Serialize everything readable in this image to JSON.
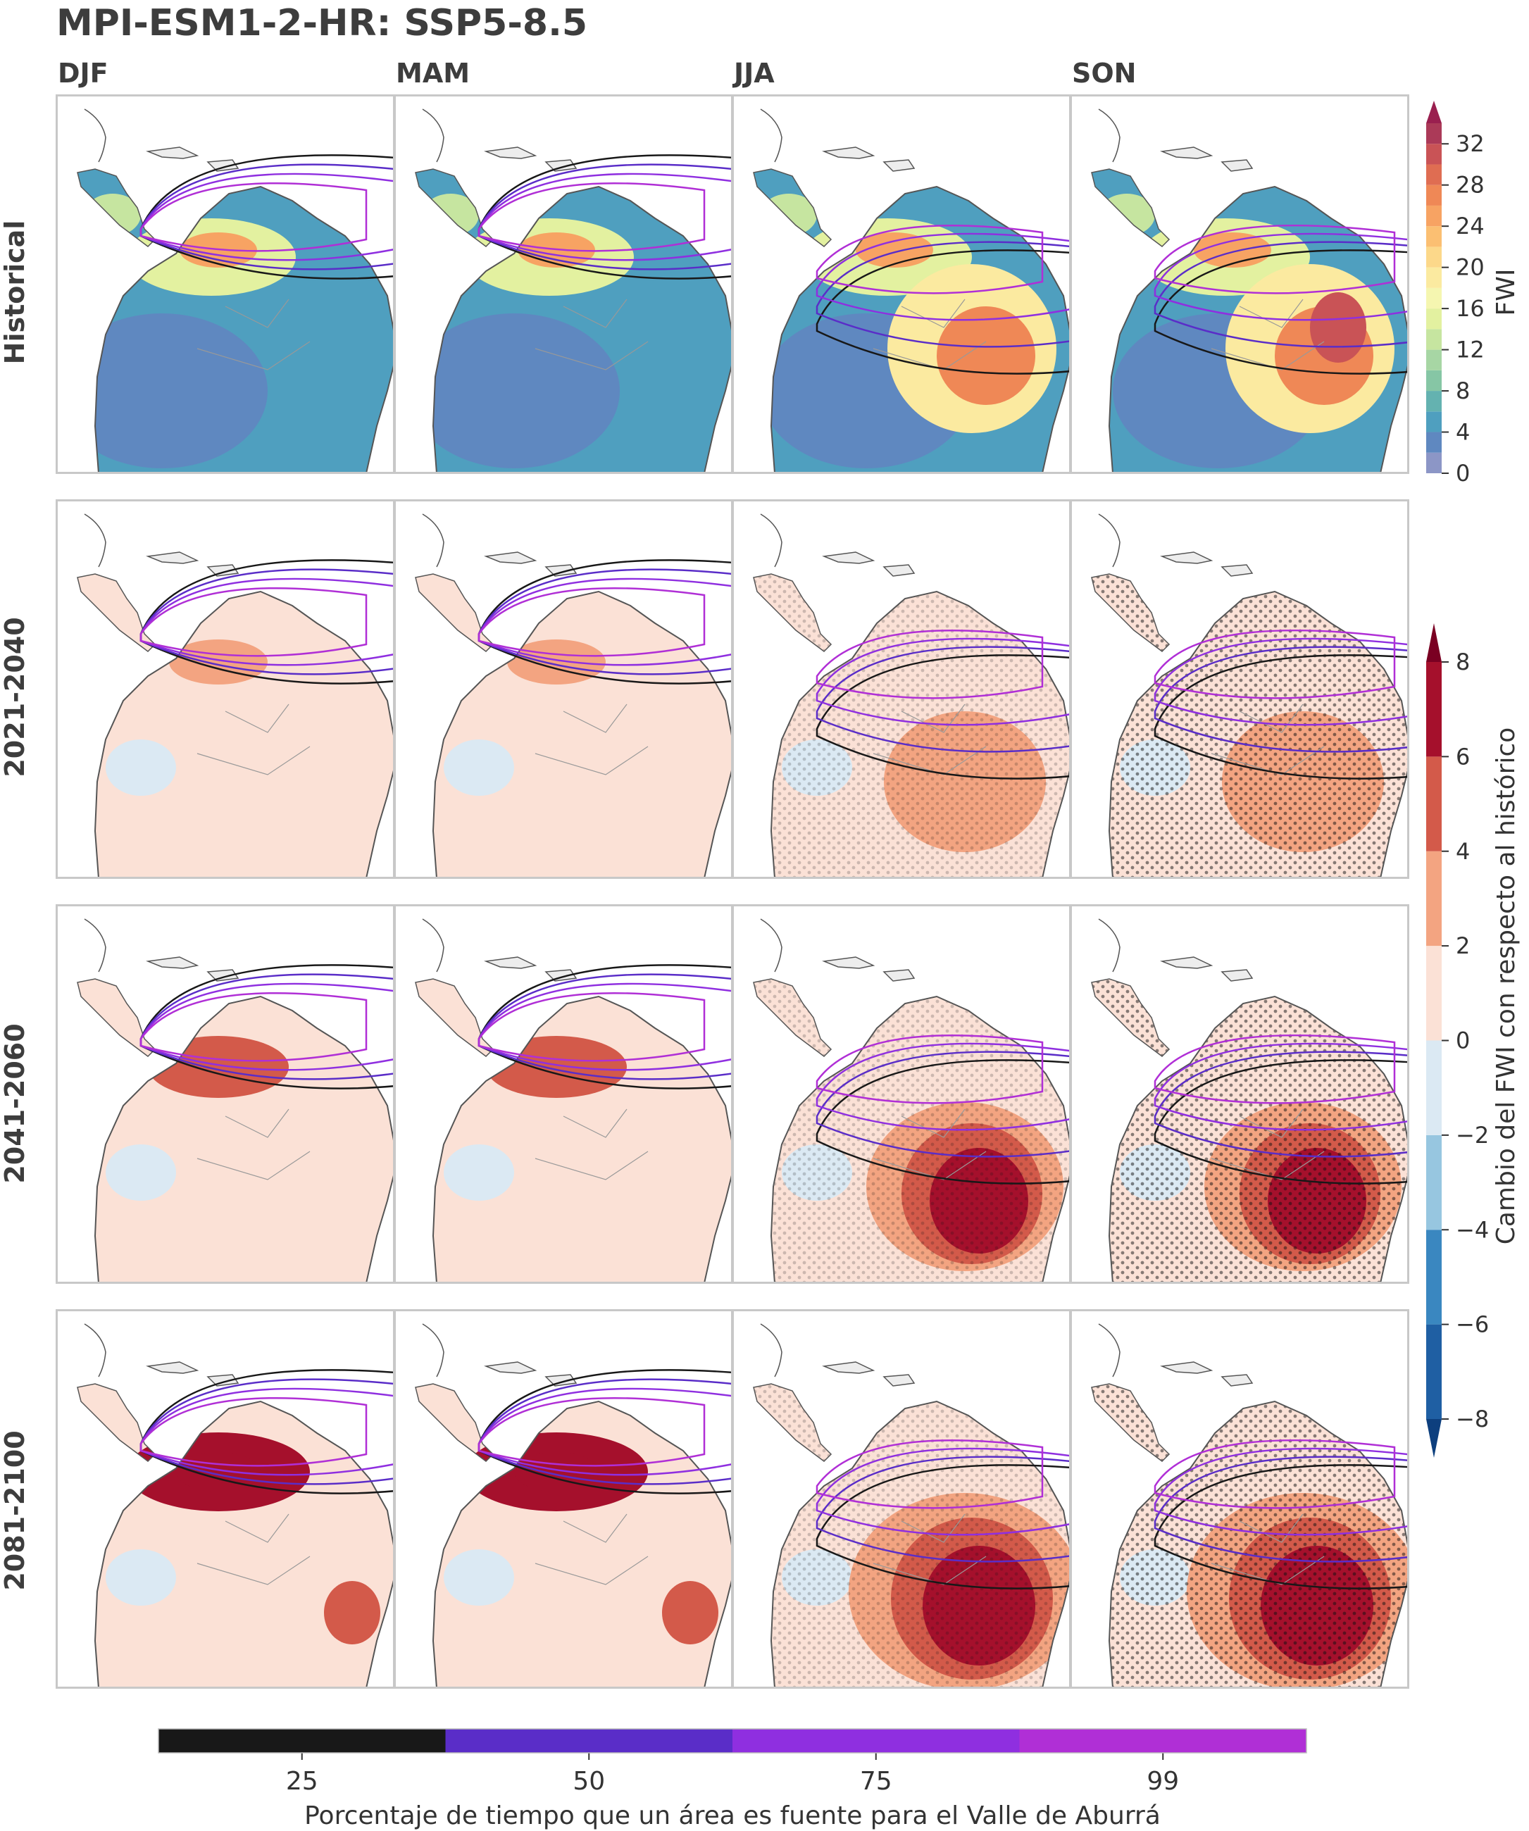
{
  "title": "MPI-ESM1-2-HR: SSP5-8.5",
  "columns": [
    "DJF",
    "MAM",
    "JJA",
    "SON"
  ],
  "rows": [
    "Historical",
    "2021-2040",
    "2041-2060",
    "2081-2100"
  ],
  "colors": {
    "panel_border": "#c8c8c8",
    "land_base": "#ededed",
    "coast": "#555555",
    "source_contour_25": "#181818",
    "source_contour_50": "#5a2dc8",
    "source_contour_75": "#8f2fe0",
    "source_contour_99": "#b02fd6"
  },
  "chart_data": [
    {
      "type": "heatmap",
      "name": "fwi_colorbar",
      "label": "FWI",
      "ticks": [
        0,
        4,
        8,
        12,
        16,
        20,
        24,
        28,
        32
      ],
      "range": [
        0,
        34
      ],
      "extend": "max",
      "levels": [
        {
          "from": 0,
          "to": 2,
          "color": "#8c96c6"
        },
        {
          "from": 2,
          "to": 4,
          "color": "#5f88c0"
        },
        {
          "from": 4,
          "to": 6,
          "color": "#4f9fbf"
        },
        {
          "from": 6,
          "to": 8,
          "color": "#64b2b0"
        },
        {
          "from": 8,
          "to": 10,
          "color": "#86c6a5"
        },
        {
          "from": 10,
          "to": 12,
          "color": "#a7d6a4"
        },
        {
          "from": 12,
          "to": 14,
          "color": "#c6e5a0"
        },
        {
          "from": 14,
          "to": 16,
          "color": "#e3f1a0"
        },
        {
          "from": 16,
          "to": 18,
          "color": "#f5f6b0"
        },
        {
          "from": 18,
          "to": 20,
          "color": "#fbeaa0"
        },
        {
          "from": 20,
          "to": 22,
          "color": "#fcd88a"
        },
        {
          "from": 22,
          "to": 24,
          "color": "#fbbf72"
        },
        {
          "from": 24,
          "to": 26,
          "color": "#f7a363"
        },
        {
          "from": 26,
          "to": 28,
          "color": "#ef8856"
        },
        {
          "from": 28,
          "to": 30,
          "color": "#df6d52"
        },
        {
          "from": 30,
          "to": 32,
          "color": "#c95356"
        },
        {
          "from": 32,
          "to": 34,
          "color": "#ab3a58"
        }
      ],
      "extend_color": "#9a1f4f"
    },
    {
      "type": "heatmap",
      "name": "change_colorbar",
      "label": "Cambio del FWI con respecto al histórico",
      "ticks": [
        -8,
        -6,
        -4,
        -2,
        0,
        2,
        4,
        6,
        8
      ],
      "range": [
        -8,
        8
      ],
      "extend": "both",
      "levels": [
        {
          "from": -8,
          "to": -6,
          "color": "#1f5fa3"
        },
        {
          "from": -6,
          "to": -4,
          "color": "#3a87c0"
        },
        {
          "from": -4,
          "to": -2,
          "color": "#97c6e0"
        },
        {
          "from": -2,
          "to": 0,
          "color": "#dbe9f3"
        },
        {
          "from": 0,
          "to": 2,
          "color": "#fbe1d6"
        },
        {
          "from": 2,
          "to": 4,
          "color": "#f3a481"
        },
        {
          "from": 4,
          "to": 6,
          "color": "#d35a4a"
        },
        {
          "from": 6,
          "to": 8,
          "color": "#a5102c"
        }
      ],
      "extend_low_color": "#0d3f7e",
      "extend_high_color": "#7a0022"
    },
    {
      "type": "heatmap",
      "name": "source_percent_colorbar",
      "label": "Porcentaje de tiempo que un área es fuente para el Valle de Aburrá",
      "categories": [
        "25",
        "50",
        "75",
        "99"
      ],
      "colors": [
        "#181818",
        "#5a2dc8",
        "#8f2fe0",
        "#b02fd6"
      ]
    }
  ]
}
